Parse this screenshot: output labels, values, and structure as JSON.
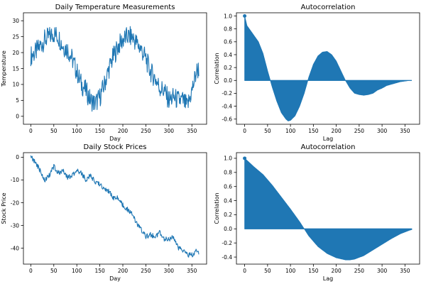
{
  "chart_data": [
    {
      "type": "line",
      "title": "Daily Temperature Measurements",
      "xlabel": "Day",
      "ylabel": "Temperature",
      "xlim": [
        -16,
        382
      ],
      "ylim": [
        -2.5,
        32.5
      ],
      "xticks": [
        0,
        50,
        100,
        150,
        200,
        250,
        300,
        350
      ],
      "yticks": [
        0,
        5,
        10,
        15,
        20,
        25,
        30
      ],
      "color": "#1f77b4",
      "series": [
        {
          "x": [
            0,
            10,
            20,
            30,
            40,
            50,
            60,
            70,
            80,
            90,
            100,
            110,
            120,
            130,
            140,
            150,
            160,
            170,
            180,
            190,
            200,
            210,
            220,
            230,
            240,
            250,
            260,
            270,
            280,
            290,
            300,
            310,
            320,
            330,
            340,
            350,
            360,
            365
          ],
          "values": [
            19,
            20,
            22,
            24,
            25,
            26,
            25,
            22,
            21,
            18,
            14,
            10,
            8,
            5,
            4,
            6,
            10,
            15,
            19,
            22,
            24,
            25,
            25,
            23,
            21,
            18,
            14,
            12,
            9,
            8,
            5,
            6,
            5,
            5,
            3,
            8,
            14,
            15
          ]
        }
      ]
    },
    {
      "type": "bar",
      "title": "Autocorrelation",
      "xlabel": "Lag",
      "ylabel": "Correlation",
      "xlim": [
        -18,
        382
      ],
      "ylim": [
        -0.68,
        1.05
      ],
      "xticks": [
        0,
        50,
        100,
        150,
        200,
        250,
        300,
        350
      ],
      "yticks": [
        -0.6,
        -0.4,
        -0.2,
        0.0,
        0.2,
        0.4,
        0.6,
        0.8,
        1.0
      ],
      "color": "#1f77b4",
      "series": [
        {
          "x": [
            0,
            5,
            10,
            20,
            30,
            40,
            50,
            60,
            70,
            80,
            90,
            95,
            100,
            110,
            120,
            130,
            140,
            150,
            160,
            170,
            180,
            190,
            200,
            210,
            220,
            230,
            240,
            250,
            260,
            270,
            280,
            290,
            300,
            310,
            320,
            330,
            340,
            350,
            360,
            365
          ],
          "values": [
            1.0,
            0.85,
            0.8,
            0.7,
            0.6,
            0.42,
            0.15,
            -0.1,
            -0.32,
            -0.5,
            -0.6,
            -0.63,
            -0.62,
            -0.55,
            -0.4,
            -0.2,
            0.05,
            0.25,
            0.38,
            0.44,
            0.45,
            0.4,
            0.3,
            0.15,
            0.0,
            -0.12,
            -0.2,
            -0.22,
            -0.23,
            -0.22,
            -0.2,
            -0.15,
            -0.12,
            -0.08,
            -0.06,
            -0.04,
            -0.02,
            -0.01,
            0.0,
            0.0
          ]
        }
      ]
    },
    {
      "type": "line",
      "title": "Daily Stock Prices",
      "xlabel": "Day",
      "ylabel": "Stock Price",
      "xlim": [
        -16,
        382
      ],
      "ylim": [
        -47,
        2
      ],
      "xticks": [
        0,
        50,
        100,
        150,
        200,
        250,
        300,
        350
      ],
      "yticks": [
        0,
        -10,
        -20,
        -30,
        -40
      ],
      "color": "#1f77b4",
      "series": [
        {
          "x": [
            0,
            10,
            20,
            30,
            40,
            50,
            60,
            70,
            80,
            90,
            100,
            110,
            120,
            130,
            140,
            150,
            160,
            170,
            180,
            190,
            200,
            210,
            220,
            230,
            240,
            250,
            260,
            270,
            280,
            290,
            300,
            310,
            320,
            330,
            340,
            350,
            360,
            365
          ],
          "values": [
            0,
            -2,
            -6,
            -10,
            -8,
            -4,
            -7,
            -6,
            -9,
            -8,
            -6,
            -7,
            -10,
            -8,
            -11,
            -12,
            -14,
            -15,
            -18,
            -18,
            -21,
            -23,
            -25,
            -29,
            -32,
            -35,
            -34,
            -35,
            -33,
            -36,
            -36,
            -35,
            -40,
            -41,
            -43,
            -43,
            -41,
            -42
          ]
        }
      ]
    },
    {
      "type": "bar",
      "title": "Autocorrelation",
      "xlabel": "Lag",
      "ylabel": "Correlation",
      "xlim": [
        -18,
        382
      ],
      "ylim": [
        -0.5,
        1.08
      ],
      "xticks": [
        0,
        50,
        100,
        150,
        200,
        250,
        300,
        350
      ],
      "yticks": [
        -0.4,
        -0.2,
        0.0,
        0.2,
        0.4,
        0.6,
        0.8,
        1.0
      ],
      "color": "#1f77b4",
      "series": [
        {
          "x": [
            0,
            10,
            20,
            40,
            60,
            80,
            100,
            120,
            130,
            140,
            160,
            180,
            200,
            220,
            230,
            240,
            260,
            280,
            300,
            320,
            340,
            360,
            365
          ],
          "values": [
            1.0,
            0.94,
            0.88,
            0.77,
            0.62,
            0.45,
            0.28,
            0.1,
            0.0,
            -0.1,
            -0.25,
            -0.35,
            -0.41,
            -0.44,
            -0.44,
            -0.43,
            -0.38,
            -0.3,
            -0.22,
            -0.14,
            -0.07,
            -0.02,
            -0.01
          ]
        }
      ]
    }
  ]
}
